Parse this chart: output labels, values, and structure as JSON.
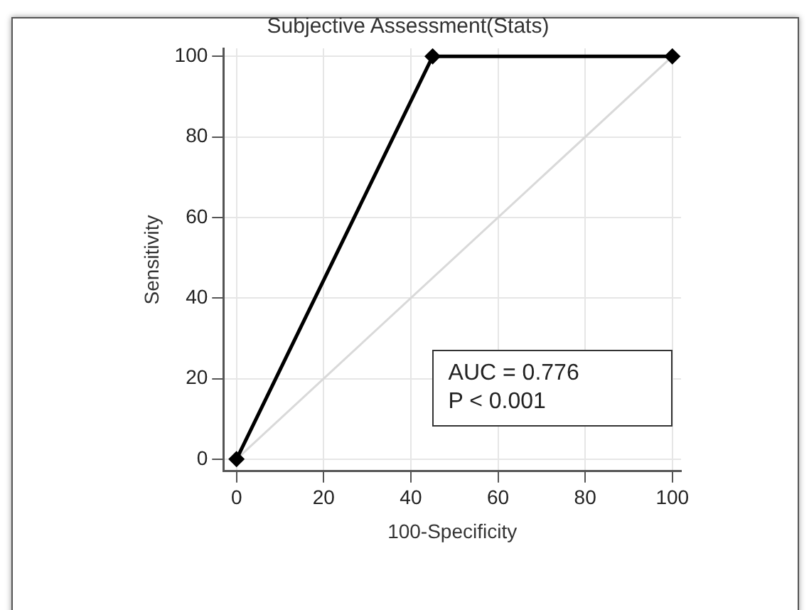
{
  "chart_data": {
    "type": "line",
    "title": "Subjective Assessment(Stats)",
    "xlabel": "100-Specificity",
    "ylabel": "Sensitivity",
    "series": [
      {
        "x": [
          0,
          45,
          100
        ],
        "values": [
          0,
          100,
          100
        ],
        "color": "#000000",
        "marker": "diamond"
      },
      {
        "x": [
          0,
          100
        ],
        "values": [
          0,
          100
        ],
        "color": "#d9d9d9",
        "marker": "none"
      }
    ],
    "xlim": [
      -3,
      102
    ],
    "ylim": [
      -3,
      102
    ],
    "xticks": [
      0,
      20,
      40,
      60,
      80,
      100
    ],
    "yticks": [
      0,
      20,
      40,
      60,
      80,
      100
    ],
    "grid": true,
    "legend": false,
    "annotations": [
      "AUC = 0.776",
      "P < 0.001"
    ]
  }
}
